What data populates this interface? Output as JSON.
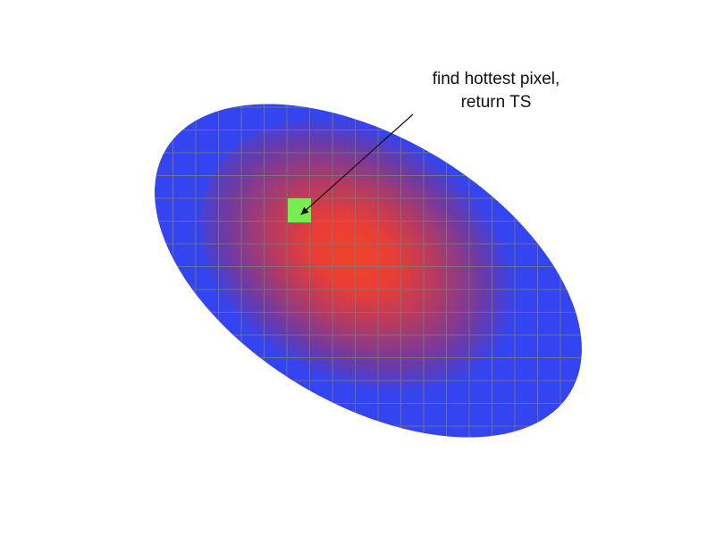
{
  "annotation": {
    "line1": "find hottest pixel,",
    "line2": "return TS"
  },
  "colors": {
    "background": "#ffffff",
    "ellipse_cool": "#3344f0",
    "ellipse_mid": "#7a3a9a",
    "ellipse_hot": "#f0432a",
    "grid_line": "#7a7a7a",
    "hottest_pixel": "#76ee52",
    "arrow": "#111111"
  },
  "icons": {
    "hottest_pixel": "square-marker",
    "pointer": "arrow"
  }
}
